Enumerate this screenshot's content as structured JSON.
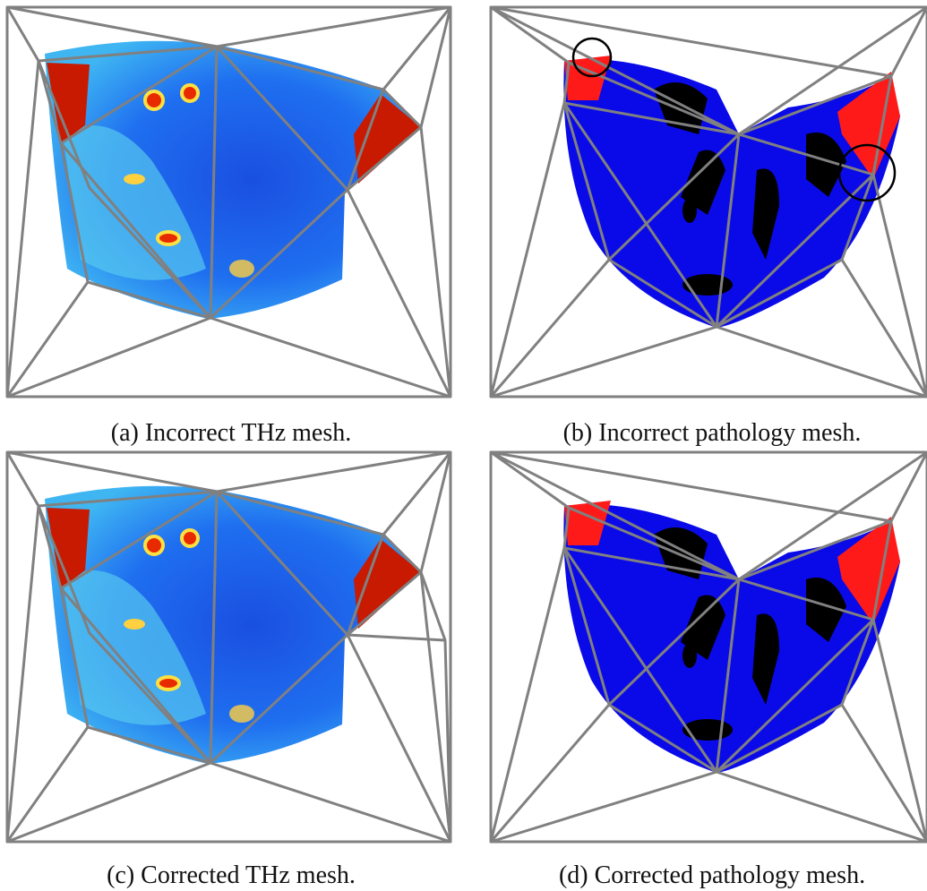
{
  "captions": [
    "(a) Incorrect THz mesh.",
    "(b) Incorrect pathology mesh.",
    "(c) Corrected THz mesh.",
    "(d) Corrected pathology mesh."
  ]
}
